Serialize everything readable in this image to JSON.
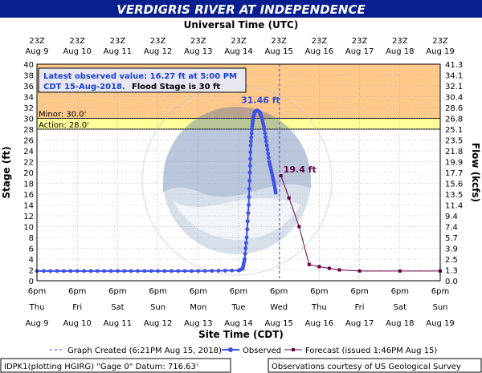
{
  "title": "VERDIGRIS RIVER AT INDEPENDENCE",
  "top_axis_title": "Universal Time (UTC)",
  "bottom_axis_title": "Site Time (CDT)",
  "left_axis_title": "Stage (ft)",
  "right_axis_title": "Flow (kcfs)",
  "latest_box": {
    "line1": "Latest observed value: 16.27 ft at 5:00 PM",
    "line2a": "CDT 15-Aug-2018.",
    "line2b": "Flood Stage is 30 ft"
  },
  "bands": {
    "minor_label": "Minor: 30.0'",
    "action_label": "Action: 28.0'"
  },
  "legend": {
    "created": "Graph Created (6:21PM Aug 15, 2018)",
    "observed": "Observed",
    "forecast": "Forecast (issued 1:46PM Aug 15)"
  },
  "footer": {
    "left": "IDPK1(plotting HGIRG) \"Gage 0\" Datum: 716.63'",
    "right": "Observations courtesy of US Geological Survey"
  },
  "colors": {
    "title_bg": "#0a1f8f",
    "minor_band": "#ffc98b",
    "action_band": "#ffff99",
    "observed": "#3f51e6",
    "forecast": "#660044",
    "peak_label": "#2e4bd6"
  },
  "chart_data": {
    "type": "line",
    "ylim": [
      0,
      40
    ],
    "yticks": [
      0,
      2,
      4,
      6,
      8,
      10,
      12,
      14,
      16,
      18,
      20,
      22,
      24,
      26,
      28,
      30,
      32,
      34,
      36,
      38,
      40
    ],
    "right_ticks": [
      "0.0",
      "1.3",
      "2.5",
      "3.9",
      "5.7",
      "7.4",
      "9.4",
      "11.4",
      "13.5",
      "15.6",
      "17.7",
      "19.9",
      "21.8",
      "23.5",
      "25.1",
      "26.8",
      "28.6",
      "30.4",
      "32.1",
      "34.1",
      "41.3"
    ],
    "top_ticks": [
      {
        "time": "23Z",
        "day": "Aug 9"
      },
      {
        "time": "23Z",
        "day": "Aug 10"
      },
      {
        "time": "23Z",
        "day": "Aug 11"
      },
      {
        "time": "23Z",
        "day": "Aug 12"
      },
      {
        "time": "23Z",
        "day": "Aug 13"
      },
      {
        "time": "23Z",
        "day": "Aug 14"
      },
      {
        "time": "23Z",
        "day": "Aug 15"
      },
      {
        "time": "23Z",
        "day": "Aug 16"
      },
      {
        "time": "23Z",
        "day": "Aug 17"
      },
      {
        "time": "23Z",
        "day": "Aug 18"
      },
      {
        "time": "23Z",
        "day": "Aug 19"
      }
    ],
    "bottom_ticks": [
      {
        "time": "6pm",
        "weekday": "Thu",
        "date": "Aug 9"
      },
      {
        "time": "6pm",
        "weekday": "Fri",
        "date": "Aug 10"
      },
      {
        "time": "6pm",
        "weekday": "Sat",
        "date": "Aug 11"
      },
      {
        "time": "6pm",
        "weekday": "Sun",
        "date": "Aug 12"
      },
      {
        "time": "6pm",
        "weekday": "Mon",
        "date": "Aug 13"
      },
      {
        "time": "6pm",
        "weekday": "Tue",
        "date": "Aug 14"
      },
      {
        "time": "6pm",
        "weekday": "Wed",
        "date": "Aug 15"
      },
      {
        "time": "6pm",
        "weekday": "Thu",
        "date": "Aug 16"
      },
      {
        "time": "6pm",
        "weekday": "Fri",
        "date": "Aug 17"
      },
      {
        "time": "6pm",
        "weekday": "Sat",
        "date": "Aug 18"
      },
      {
        "time": "6pm",
        "weekday": "Sun",
        "date": "Aug 19"
      }
    ],
    "flood_categories": [
      {
        "name": "Minor",
        "from": 30,
        "to": 40
      },
      {
        "name": "Action",
        "from": 28,
        "to": 30
      }
    ],
    "graph_created_x": "2018-08-15 18:21",
    "series": [
      {
        "name": "Observed",
        "x_unit": "days after Aug 9 6pm CDT",
        "points": [
          [
            0,
            1.8
          ],
          [
            1,
            1.8
          ],
          [
            2,
            1.8
          ],
          [
            3,
            1.8
          ],
          [
            4,
            1.8
          ],
          [
            5,
            1.9
          ],
          [
            5.1,
            2.2
          ],
          [
            5.15,
            4
          ],
          [
            5.2,
            8
          ],
          [
            5.25,
            14
          ],
          [
            5.28,
            20
          ],
          [
            5.3,
            25
          ],
          [
            5.33,
            28
          ],
          [
            5.36,
            30
          ],
          [
            5.4,
            31.2
          ],
          [
            5.46,
            31.46
          ],
          [
            5.52,
            31.2
          ],
          [
            5.58,
            30
          ],
          [
            5.64,
            28
          ],
          [
            5.7,
            25
          ],
          [
            5.76,
            22
          ],
          [
            5.82,
            20
          ],
          [
            5.88,
            18
          ],
          [
            5.92,
            16.27
          ]
        ],
        "peak_label": "31.46 ft"
      },
      {
        "name": "Forecast",
        "x_unit": "days after Aug 9 6pm CDT",
        "points": [
          [
            6.05,
            19.4
          ],
          [
            6.25,
            15.3
          ],
          [
            6.5,
            10
          ],
          [
            6.75,
            3
          ],
          [
            7,
            2.6
          ],
          [
            7.25,
            2.3
          ],
          [
            7.5,
            2
          ],
          [
            8,
            1.8
          ],
          [
            9,
            1.8
          ],
          [
            10,
            1.8
          ]
        ],
        "peak_label": "19.4 ft"
      }
    ]
  }
}
